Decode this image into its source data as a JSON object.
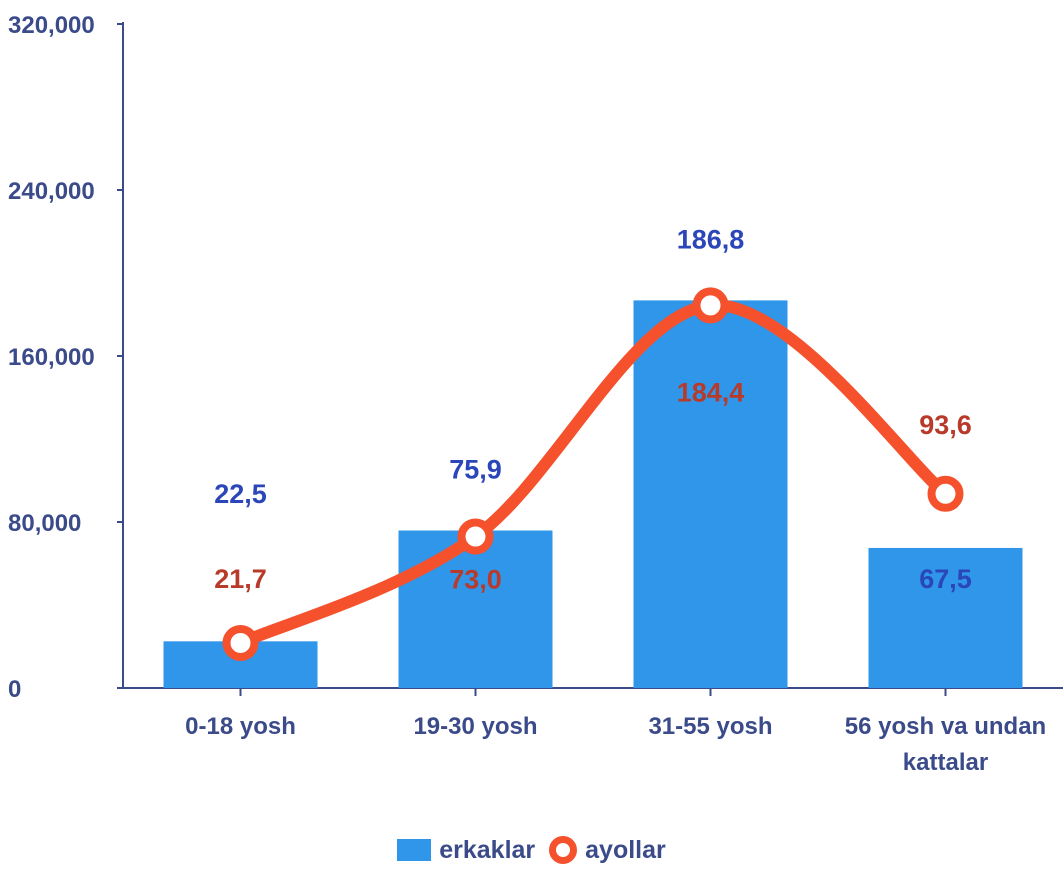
{
  "chart_data": {
    "type": "bar",
    "categories": [
      "0-18 yosh",
      "19-30 yosh",
      "31-55 yosh",
      "56 yosh va undan kattalar"
    ],
    "category_label_lines": [
      [
        "0-18 yosh"
      ],
      [
        "19-30 yosh"
      ],
      [
        "31-55 yosh"
      ],
      [
        "56 yosh va undan",
        "kattalar"
      ]
    ],
    "series": [
      {
        "name": "erkaklar",
        "type": "bar",
        "values": [
          22.5,
          75.9,
          186.8,
          67.5
        ],
        "labels": [
          "22,5",
          "75,9",
          "186,8",
          "67,5"
        ],
        "color": "#2f96ea",
        "label_color": "#2a46b8"
      },
      {
        "name": "ayollar",
        "type": "line",
        "smooth": true,
        "values": [
          21.7,
          73.0,
          184.4,
          93.6
        ],
        "labels": [
          "21,7",
          "73,0",
          "184,4",
          "93,6"
        ],
        "color": "#f4512c",
        "label_color": "#b83a2a"
      }
    ],
    "yticks": [
      "0",
      "80,000",
      "160,000",
      "240,000",
      "320,000"
    ],
    "ylim": [
      0,
      320
    ],
    "legend_position": "bottom",
    "grid": false,
    "axis_color": "#3b4b8a"
  }
}
